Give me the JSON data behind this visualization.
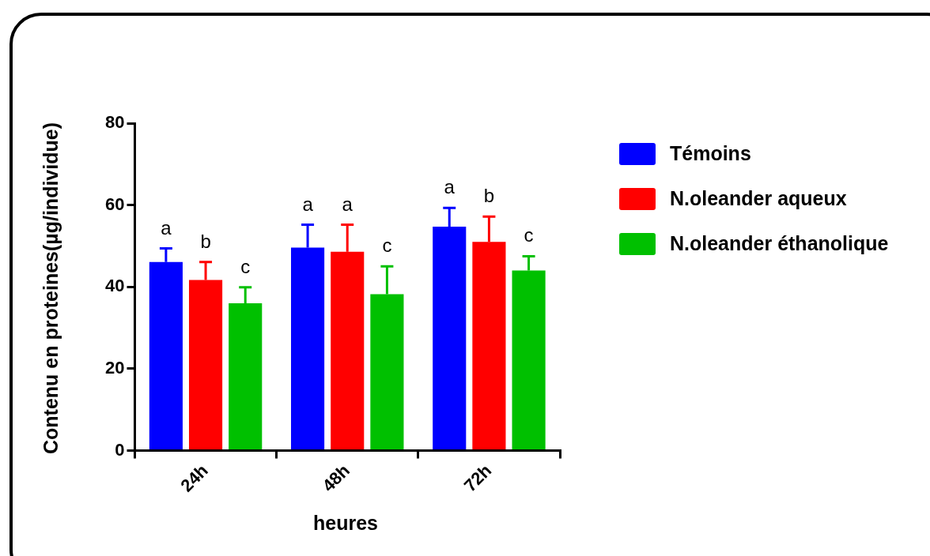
{
  "chart_data": {
    "type": "bar",
    "xlabel": "heures",
    "ylabel": "Contenu en proteines(µg/individue)",
    "categories": [
      "24h",
      "48h",
      "72h"
    ],
    "series": [
      {
        "name": "Témoins",
        "color": "#0000ff",
        "values": [
          46.1,
          49.6,
          54.7
        ],
        "errors": [
          3.3,
          5.6,
          4.6
        ]
      },
      {
        "name": "N.oleander aqueux",
        "color": "#ff0000",
        "values": [
          41.7,
          48.6,
          51.0
        ],
        "errors": [
          4.4,
          6.6,
          6.2
        ]
      },
      {
        "name": "N.oleander éthanolique",
        "color": "#00c000",
        "values": [
          36.0,
          38.2,
          44.0
        ],
        "errors": [
          3.9,
          6.8,
          3.5
        ]
      }
    ],
    "ylim": [
      0,
      80
    ],
    "yticks": [
      0,
      20,
      40,
      60,
      80
    ],
    "grid": false,
    "legend": "right",
    "annotations": [
      "a",
      "b",
      "c",
      "a",
      "a",
      "c",
      "a",
      "b",
      "c"
    ]
  }
}
